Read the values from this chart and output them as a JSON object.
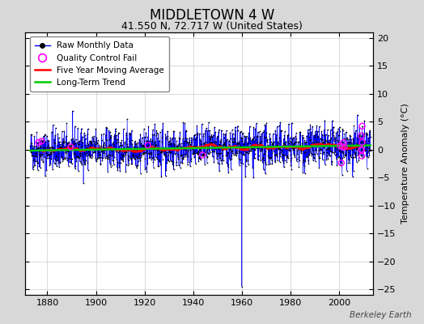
{
  "title": "MIDDLETOWN 4 W",
  "subtitle": "41.550 N, 72.717 W (United States)",
  "ylabel": "Temperature Anomaly (°C)",
  "watermark": "Berkeley Earth",
  "year_start": 1873,
  "year_end": 2013,
  "data_xlim": [
    1871,
    2014
  ],
  "ylim": [
    -26,
    21
  ],
  "yticks": [
    -25,
    -20,
    -15,
    -10,
    -5,
    0,
    5,
    10,
    15,
    20
  ],
  "xticks": [
    1880,
    1900,
    1920,
    1940,
    1960,
    1980,
    2000
  ],
  "bg_color": "#d8d8d8",
  "plot_bg_color": "#ffffff",
  "raw_color": "#0000ff",
  "raw_marker_color": "#000000",
  "qc_fail_color": "#ff00ff",
  "moving_avg_color": "#ff0000",
  "trend_color": "#00cc00",
  "title_fontsize": 12,
  "subtitle_fontsize": 9,
  "seed": 42,
  "noise_std": 1.8,
  "outlier_year": 1960,
  "outlier_value": -24.5
}
